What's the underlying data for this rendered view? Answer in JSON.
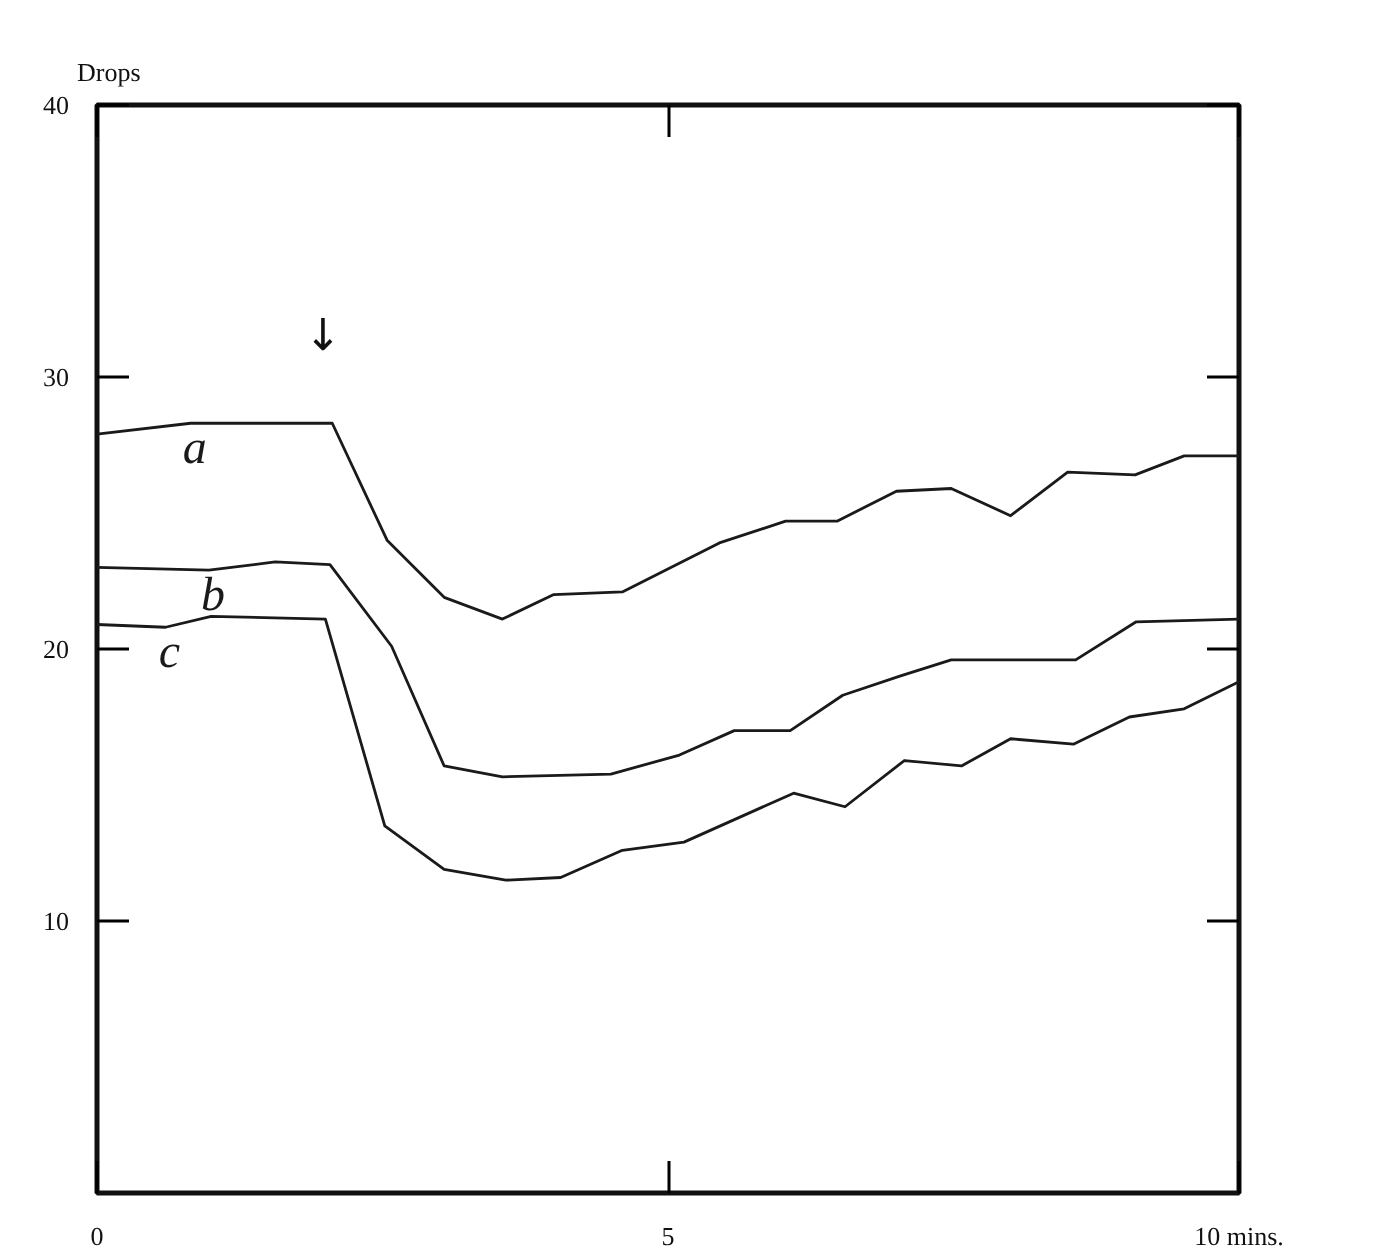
{
  "chart_data": {
    "type": "line",
    "ylabel": "Drops",
    "xlim": [
      0,
      10
    ],
    "ylim": [
      0,
      40
    ],
    "xticks": [
      0,
      5,
      {
        "value": 10,
        "label": "10 mins."
      }
    ],
    "yticks": [
      10,
      20,
      30,
      40
    ],
    "grid": false,
    "marker": "none",
    "line_style": "solid",
    "annotations": [
      "↓"
    ],
    "series": [
      {
        "name": "a",
        "color": "#1a1a1a",
        "x": [
          0,
          0.82,
          1.2,
          2.06,
          2.54,
          3.04,
          3.55,
          4.0,
          4.6,
          5.45,
          6.03,
          6.48,
          7.0,
          7.48,
          8.0,
          8.5,
          9.09,
          9.52,
          10
        ],
        "values": [
          27.9,
          28.3,
          28.3,
          28.3,
          24.0,
          21.9,
          21.1,
          22.0,
          22.1,
          23.9,
          24.7,
          24.7,
          25.8,
          25.9,
          24.9,
          26.5,
          26.4,
          27.1,
          27.1
        ]
      },
      {
        "name": "b",
        "color": "#1a1a1a",
        "x": [
          0,
          0.98,
          1.56,
          2.04,
          2.58,
          3.04,
          3.55,
          4.5,
          5.1,
          5.58,
          6.07,
          6.53,
          7.03,
          7.48,
          8.57,
          9.1,
          10
        ],
        "values": [
          23.0,
          22.9,
          23.2,
          23.1,
          20.1,
          15.7,
          15.3,
          15.4,
          16.1,
          17.0,
          17.0,
          18.3,
          19.0,
          19.6,
          19.6,
          21.0,
          21.1
        ]
      },
      {
        "name": "c",
        "color": "#1a1a1a",
        "x": [
          0,
          0.6,
          1.0,
          2.0,
          2.52,
          3.04,
          3.58,
          4.06,
          4.6,
          5.14,
          6.1,
          6.55,
          7.07,
          7.57,
          8.0,
          8.55,
          9.04,
          9.52,
          10
        ],
        "values": [
          20.9,
          20.8,
          21.2,
          21.1,
          13.5,
          11.9,
          11.5,
          11.6,
          12.6,
          12.9,
          14.7,
          14.2,
          15.9,
          15.7,
          16.7,
          16.5,
          17.5,
          17.8,
          18.8
        ]
      }
    ]
  }
}
